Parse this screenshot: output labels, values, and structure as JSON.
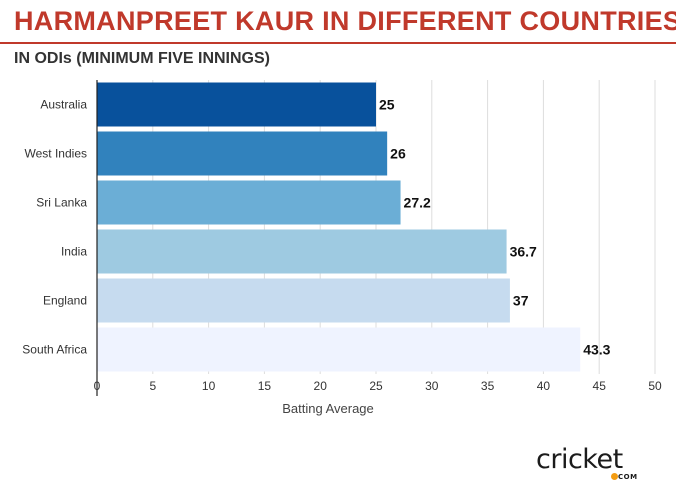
{
  "header": {
    "title": "HARMANPREET KAUR IN DIFFERENT COUNTRIES",
    "subtitle": "IN ODIs (MINIMUM FIVE INNINGS)",
    "accent_color": "#c0392b"
  },
  "chart_data": {
    "type": "bar",
    "orientation": "horizontal",
    "categories": [
      "Australia",
      "West Indies",
      "Sri Lanka",
      "India",
      "England",
      "South Africa"
    ],
    "values": [
      25,
      26,
      27.2,
      36.7,
      37,
      43.3
    ],
    "value_labels": [
      "25",
      "26",
      "27.2",
      "36.7",
      "37",
      "43.3"
    ],
    "colors": [
      "#08519c",
      "#3182bd",
      "#6baed6",
      "#9ecae1",
      "#c6dbef",
      "#eff3ff"
    ],
    "xlabel": "Batting Average",
    "ylabel": "",
    "xlim": [
      0,
      50
    ],
    "xticks": [
      0,
      5,
      10,
      15,
      20,
      25,
      30,
      35,
      40,
      45,
      50
    ],
    "grid": true
  },
  "logo": {
    "text": "cricket",
    "sub": "COM",
    "ball_color": "#f39c12"
  }
}
